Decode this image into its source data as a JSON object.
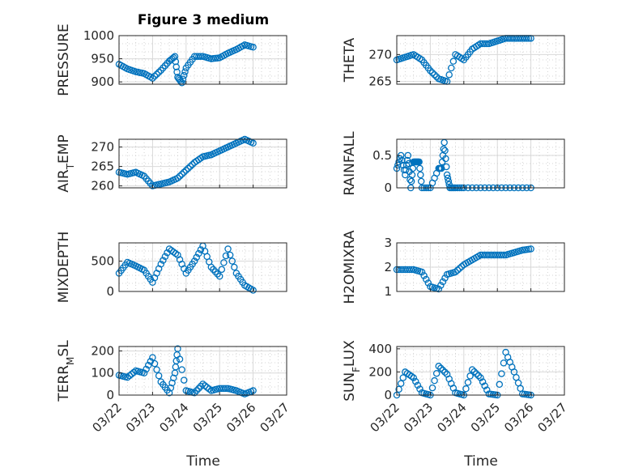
{
  "title": "Figure 3 medium",
  "colors": {
    "marker": "#0072BD",
    "axis": "#262626",
    "grid": "#d9d9d9"
  },
  "x_tick_labels": [
    "03/22",
    "03/23",
    "03/24",
    "03/25",
    "03/26",
    "03/27"
  ],
  "xlabel": "Time",
  "chart_data": [
    {
      "type": "scatter",
      "ylabel": "PRESSURE",
      "ylim": [
        895,
        1000
      ],
      "yticks": [
        "900",
        "950",
        "1000"
      ],
      "xlim": [
        "03/22",
        "03/27"
      ],
      "grid": true,
      "series": [
        {
          "x": [
            "03/22 00:00",
            "03/22 06:00",
            "03/22 12:00",
            "03/22 18:00",
            "03/23 00:00",
            "03/23 06:00",
            "03/23 12:00",
            "03/23 16:00",
            "03/23 18:00",
            "03/23 21:00",
            "03/24 00:00",
            "03/24 06:00",
            "03/24 12:00",
            "03/24 18:00",
            "03/25 00:00",
            "03/25 06:00",
            "03/25 12:00",
            "03/25 18:00",
            "03/26 00:00"
          ],
          "y": [
            938,
            928,
            922,
            918,
            908,
            925,
            945,
            955,
            910,
            898,
            930,
            955,
            955,
            950,
            952,
            962,
            970,
            980,
            975
          ]
        }
      ]
    },
    {
      "type": "scatter",
      "ylabel": "THETA",
      "ylim": [
        264.5,
        273.5
      ],
      "yticks": [
        "265",
        "270"
      ],
      "xlim": [
        "03/22",
        "03/27"
      ],
      "grid": true,
      "series": [
        {
          "x": [
            "03/22 00:00",
            "03/22 06:00",
            "03/22 12:00",
            "03/22 18:00",
            "03/23 00:00",
            "03/23 06:00",
            "03/23 12:00",
            "03/23 18:00",
            "03/24 00:00",
            "03/24 06:00",
            "03/24 12:00",
            "03/24 18:00",
            "03/25 00:00",
            "03/25 06:00",
            "03/25 12:00",
            "03/25 18:00",
            "03/26 00:00"
          ],
          "y": [
            269,
            269.5,
            270,
            269,
            267,
            265.5,
            265,
            270,
            269,
            271,
            272,
            272,
            272.5,
            273,
            273,
            273,
            273
          ]
        }
      ]
    },
    {
      "type": "scatter",
      "ylabel": "AIR_TEMP",
      "ylim": [
        259.5,
        272
      ],
      "yticks": [
        "260",
        "265",
        "270"
      ],
      "xlim": [
        "03/22",
        "03/27"
      ],
      "grid": true,
      "series": [
        {
          "x": [
            "03/22 00:00",
            "03/22 06:00",
            "03/22 12:00",
            "03/22 18:00",
            "03/23 00:00",
            "03/23 06:00",
            "03/23 12:00",
            "03/23 18:00",
            "03/24 00:00",
            "03/24 06:00",
            "03/24 12:00",
            "03/24 18:00",
            "03/25 00:00",
            "03/25 06:00",
            "03/25 12:00",
            "03/25 18:00",
            "03/26 00:00"
          ],
          "y": [
            263.5,
            263,
            263.5,
            262.5,
            260,
            260.5,
            261,
            262,
            264,
            266,
            267.5,
            268,
            269,
            270,
            271,
            272,
            271
          ]
        }
      ]
    },
    {
      "type": "scatter",
      "ylabel": "RAINFALL",
      "ylim": [
        0,
        0.75
      ],
      "yticks": [
        "0",
        "0.5"
      ],
      "xlim": [
        "03/22",
        "03/27"
      ],
      "grid": true,
      "series": [
        {
          "x": [
            "03/22 00:00",
            "03/22 03:00",
            "03/22 06:00",
            "03/22 08:00",
            "03/22 10:00",
            "03/22 12:00",
            "03/22 14:00",
            "03/22 16:00",
            "03/22 18:00",
            "03/23 00:00",
            "03/23 06:00",
            "03/23 08:00",
            "03/23 10:00",
            "03/23 12:00",
            "03/23 14:00",
            "03/23 18:00",
            "03/24 00:00",
            "03/24 12:00",
            "03/25 00:00",
            "03/25 12:00",
            "03/26 00:00"
          ],
          "y": [
            0.3,
            0.5,
            0.2,
            0.5,
            0,
            0.4,
            0.4,
            0.4,
            0,
            0,
            0.3,
            0.3,
            0.7,
            0.2,
            0,
            0,
            0,
            0,
            0,
            0,
            0
          ]
        }
      ]
    },
    {
      "type": "scatter",
      "ylabel": "MIXDEPTH",
      "ylim": [
        0,
        800
      ],
      "yticks": [
        "0",
        "500"
      ],
      "xlim": [
        "03/22",
        "03/27"
      ],
      "grid": true,
      "series": [
        {
          "x": [
            "03/22 00:00",
            "03/22 06:00",
            "03/22 12:00",
            "03/22 18:00",
            "03/23 00:00",
            "03/23 06:00",
            "03/23 12:00",
            "03/23 18:00",
            "03/24 00:00",
            "03/24 06:00",
            "03/24 12:00",
            "03/24 18:00",
            "03/25 00:00",
            "03/25 06:00",
            "03/25 12:00",
            "03/25 18:00",
            "03/26 00:00"
          ],
          "y": [
            300,
            480,
            420,
            350,
            150,
            450,
            700,
            600,
            300,
            500,
            750,
            400,
            250,
            700,
            300,
            100,
            20
          ]
        }
      ]
    },
    {
      "type": "scatter",
      "ylabel": "H2OMIXRA",
      "ylim": [
        1,
        3
      ],
      "yticks": [
        "1",
        "2",
        "3"
      ],
      "xlim": [
        "03/22",
        "03/27"
      ],
      "grid": true,
      "series": [
        {
          "x": [
            "03/22 00:00",
            "03/22 06:00",
            "03/22 12:00",
            "03/22 18:00",
            "03/23 00:00",
            "03/23 06:00",
            "03/23 12:00",
            "03/23 18:00",
            "03/24 00:00",
            "03/24 06:00",
            "03/24 12:00",
            "03/24 18:00",
            "03/25 00:00",
            "03/25 06:00",
            "03/25 12:00",
            "03/25 18:00",
            "03/26 00:00"
          ],
          "y": [
            1.9,
            1.9,
            1.9,
            1.8,
            1.2,
            1.1,
            1.7,
            1.8,
            2.1,
            2.3,
            2.5,
            2.5,
            2.5,
            2.5,
            2.6,
            2.7,
            2.75
          ]
        }
      ]
    },
    {
      "type": "scatter",
      "ylabel": "TERR_MSL",
      "ylim": [
        0,
        220
      ],
      "yticks": [
        "0",
        "100",
        "200"
      ],
      "xlim": [
        "03/22",
        "03/27"
      ],
      "grid": true,
      "series": [
        {
          "x": [
            "03/22 00:00",
            "03/22 06:00",
            "03/22 12:00",
            "03/22 18:00",
            "03/23 00:00",
            "03/23 06:00",
            "03/23 12:00",
            "03/23 16:00",
            "03/23 18:00",
            "03/24 00:00",
            "03/24 06:00",
            "03/24 12:00",
            "03/24 18:00",
            "03/25 00:00",
            "03/25 06:00",
            "03/25 12:00",
            "03/25 18:00",
            "03/26 00:00"
          ],
          "y": [
            90,
            80,
            110,
            100,
            170,
            60,
            10,
            100,
            210,
            20,
            10,
            50,
            20,
            30,
            30,
            20,
            5,
            20
          ]
        }
      ]
    },
    {
      "type": "scatter",
      "ylabel": "SUN_FLUX",
      "ylim": [
        0,
        420
      ],
      "yticks": [
        "0",
        "200",
        "400"
      ],
      "xlim": [
        "03/22",
        "03/27"
      ],
      "grid": true,
      "series": [
        {
          "x": [
            "03/22 00:00",
            "03/22 06:00",
            "03/22 12:00",
            "03/22 18:00",
            "03/23 00:00",
            "03/23 06:00",
            "03/23 12:00",
            "03/23 18:00",
            "03/24 00:00",
            "03/24 06:00",
            "03/24 12:00",
            "03/24 18:00",
            "03/25 00:00",
            "03/25 06:00",
            "03/25 12:00",
            "03/25 18:00",
            "03/26 00:00"
          ],
          "y": [
            0,
            200,
            150,
            20,
            0,
            250,
            180,
            20,
            0,
            220,
            150,
            10,
            0,
            370,
            200,
            10,
            0
          ]
        }
      ]
    }
  ]
}
